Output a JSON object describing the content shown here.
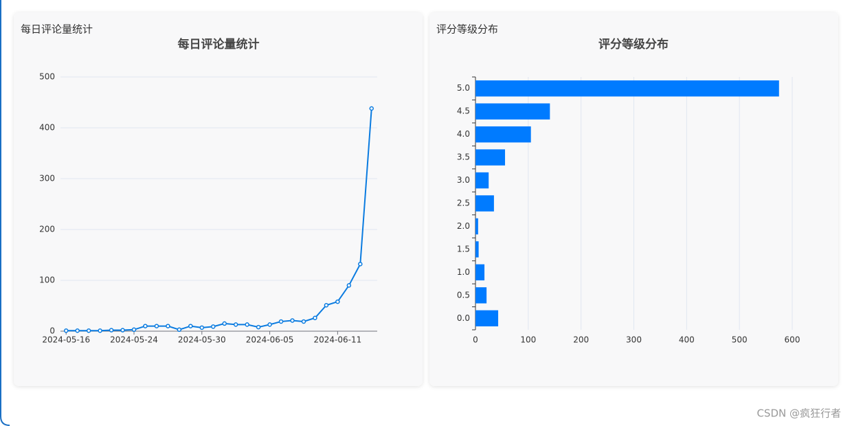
{
  "cards": [
    {
      "heading": "每日评论量统计"
    },
    {
      "heading": "评分等级分布"
    }
  ],
  "watermark": "CSDN @疯狂行者",
  "chart_data": [
    {
      "type": "line",
      "title": "每日评论量统计",
      "color": "#0a7be0",
      "categories": [
        "2024-05-16",
        null,
        null,
        null,
        null,
        null,
        "2024-05-24",
        null,
        null,
        null,
        null,
        null,
        "2024-05-30",
        null,
        null,
        null,
        null,
        null,
        "2024-06-05",
        null,
        null,
        null,
        null,
        null,
        "2024-06-11",
        null,
        null,
        null
      ],
      "values": [
        1,
        1,
        1,
        1,
        2,
        2,
        3,
        10,
        10,
        10,
        3,
        10,
        7,
        9,
        15,
        13,
        13,
        8,
        13,
        19,
        21,
        19,
        26,
        51,
        58,
        90,
        132,
        438
      ],
      "ylim": [
        0,
        500
      ],
      "yticks": [
        0,
        100,
        200,
        300,
        400,
        500
      ],
      "grid": true
    },
    {
      "type": "bar",
      "horizontal": true,
      "title": "评分等级分布",
      "color": "#007bff",
      "categories": [
        "0.0",
        "0.5",
        "1.0",
        "1.5",
        "2.0",
        "2.5",
        "3.0",
        "3.5",
        "4.0",
        "4.5",
        "5.0"
      ],
      "values": [
        43,
        21,
        17,
        6,
        5,
        35,
        25,
        56,
        105,
        141,
        575
      ],
      "xlim": [
        0,
        600
      ],
      "xticks": [
        0,
        100,
        200,
        300,
        400,
        500,
        600
      ],
      "grid": true
    }
  ]
}
